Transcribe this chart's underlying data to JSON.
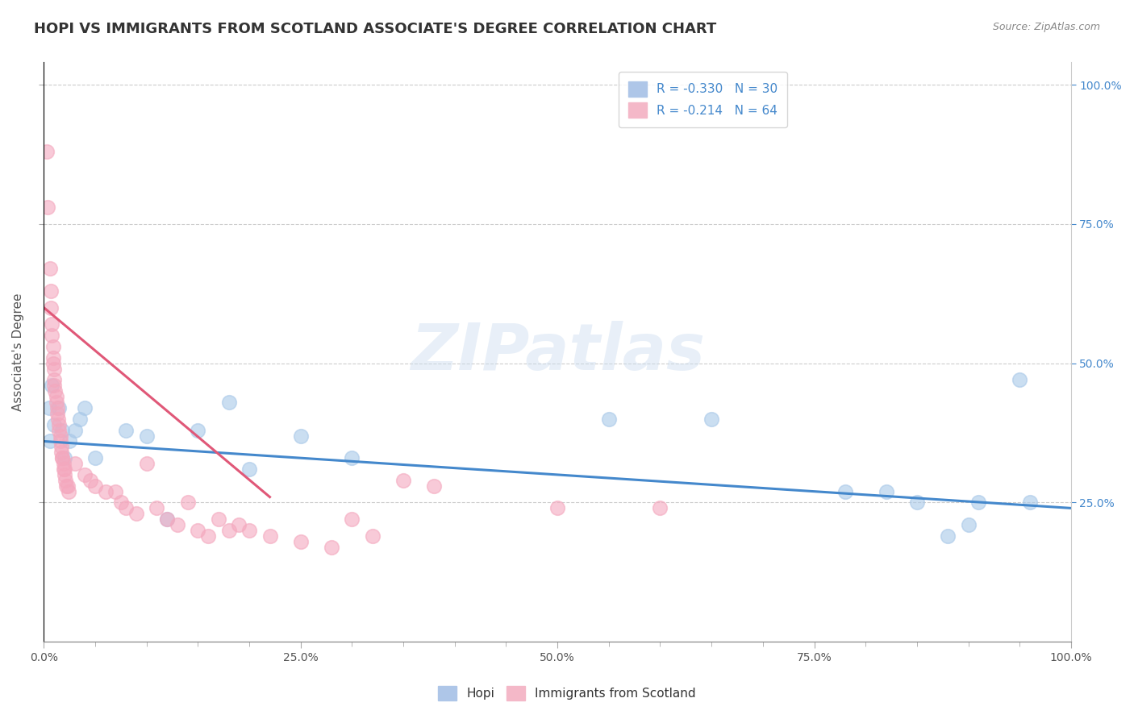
{
  "title": "HOPI VS IMMIGRANTS FROM SCOTLAND ASSOCIATE'S DEGREE CORRELATION CHART",
  "source": "Source: ZipAtlas.com",
  "ylabel": "Associate's Degree",
  "xlim": [
    0,
    1
  ],
  "ylim": [
    0,
    1.04
  ],
  "xtick_labels": [
    "0.0%",
    "",
    "",
    "",
    "",
    "25.0%",
    "",
    "",
    "",
    "",
    "50.0%",
    "",
    "",
    "",
    "",
    "75.0%",
    "",
    "",
    "",
    "",
    "100.0%"
  ],
  "xtick_vals": [
    0,
    0.05,
    0.1,
    0.15,
    0.2,
    0.25,
    0.3,
    0.35,
    0.4,
    0.45,
    0.5,
    0.55,
    0.6,
    0.65,
    0.7,
    0.75,
    0.8,
    0.85,
    0.9,
    0.95,
    1.0
  ],
  "ytick_vals": [
    0.25,
    0.5,
    0.75,
    1.0
  ],
  "ytick_labels": [
    "25.0%",
    "50.0%",
    "75.0%",
    "100.0%"
  ],
  "hopi_color": "#a8c8e8",
  "scotland_color": "#f4a8be",
  "hopi_line_color": "#4488cc",
  "scotland_line_color": "#e05878",
  "hopi_points": [
    [
      0.005,
      0.42
    ],
    [
      0.006,
      0.36
    ],
    [
      0.008,
      0.46
    ],
    [
      0.01,
      0.39
    ],
    [
      0.015,
      0.42
    ],
    [
      0.018,
      0.38
    ],
    [
      0.02,
      0.33
    ],
    [
      0.025,
      0.36
    ],
    [
      0.03,
      0.38
    ],
    [
      0.035,
      0.4
    ],
    [
      0.04,
      0.42
    ],
    [
      0.05,
      0.33
    ],
    [
      0.08,
      0.38
    ],
    [
      0.1,
      0.37
    ],
    [
      0.12,
      0.22
    ],
    [
      0.15,
      0.38
    ],
    [
      0.18,
      0.43
    ],
    [
      0.2,
      0.31
    ],
    [
      0.25,
      0.37
    ],
    [
      0.3,
      0.33
    ],
    [
      0.55,
      0.4
    ],
    [
      0.65,
      0.4
    ],
    [
      0.78,
      0.27
    ],
    [
      0.82,
      0.27
    ],
    [
      0.85,
      0.25
    ],
    [
      0.88,
      0.19
    ],
    [
      0.9,
      0.21
    ],
    [
      0.91,
      0.25
    ],
    [
      0.95,
      0.47
    ],
    [
      0.96,
      0.25
    ]
  ],
  "scotland_points": [
    [
      0.003,
      0.88
    ],
    [
      0.004,
      0.78
    ],
    [
      0.006,
      0.67
    ],
    [
      0.007,
      0.63
    ],
    [
      0.007,
      0.6
    ],
    [
      0.008,
      0.57
    ],
    [
      0.008,
      0.55
    ],
    [
      0.009,
      0.53
    ],
    [
      0.009,
      0.51
    ],
    [
      0.009,
      0.5
    ],
    [
      0.01,
      0.49
    ],
    [
      0.01,
      0.47
    ],
    [
      0.01,
      0.46
    ],
    [
      0.011,
      0.45
    ],
    [
      0.012,
      0.44
    ],
    [
      0.012,
      0.43
    ],
    [
      0.013,
      0.42
    ],
    [
      0.013,
      0.41
    ],
    [
      0.014,
      0.4
    ],
    [
      0.015,
      0.39
    ],
    [
      0.015,
      0.38
    ],
    [
      0.016,
      0.37
    ],
    [
      0.016,
      0.36
    ],
    [
      0.017,
      0.35
    ],
    [
      0.017,
      0.34
    ],
    [
      0.018,
      0.33
    ],
    [
      0.018,
      0.33
    ],
    [
      0.019,
      0.32
    ],
    [
      0.019,
      0.31
    ],
    [
      0.02,
      0.31
    ],
    [
      0.02,
      0.3
    ],
    [
      0.021,
      0.29
    ],
    [
      0.022,
      0.28
    ],
    [
      0.023,
      0.28
    ],
    [
      0.024,
      0.27
    ],
    [
      0.03,
      0.32
    ],
    [
      0.04,
      0.3
    ],
    [
      0.045,
      0.29
    ],
    [
      0.05,
      0.28
    ],
    [
      0.06,
      0.27
    ],
    [
      0.07,
      0.27
    ],
    [
      0.075,
      0.25
    ],
    [
      0.08,
      0.24
    ],
    [
      0.09,
      0.23
    ],
    [
      0.1,
      0.32
    ],
    [
      0.11,
      0.24
    ],
    [
      0.12,
      0.22
    ],
    [
      0.13,
      0.21
    ],
    [
      0.14,
      0.25
    ],
    [
      0.15,
      0.2
    ],
    [
      0.16,
      0.19
    ],
    [
      0.17,
      0.22
    ],
    [
      0.18,
      0.2
    ],
    [
      0.19,
      0.21
    ],
    [
      0.2,
      0.2
    ],
    [
      0.22,
      0.19
    ],
    [
      0.25,
      0.18
    ],
    [
      0.28,
      0.17
    ],
    [
      0.3,
      0.22
    ],
    [
      0.32,
      0.19
    ],
    [
      0.35,
      0.29
    ],
    [
      0.38,
      0.28
    ],
    [
      0.5,
      0.24
    ],
    [
      0.6,
      0.24
    ]
  ],
  "hopi_trendline_x": [
    0.0,
    1.0
  ],
  "hopi_trendline_y": [
    0.36,
    0.24
  ],
  "scotland_trendline_x": [
    0.0,
    0.22
  ],
  "scotland_trendline_y": [
    0.6,
    0.26
  ],
  "background_color": "#ffffff",
  "grid_color": "#cccccc",
  "title_fontsize": 13,
  "axis_label_fontsize": 11,
  "tick_fontsize": 10,
  "legend_r_entries": [
    {
      "label": "R = -0.330   N = 30",
      "color": "#aec6e8"
    },
    {
      "label": "R = -0.214   N = 64",
      "color": "#f4b8c8"
    }
  ]
}
